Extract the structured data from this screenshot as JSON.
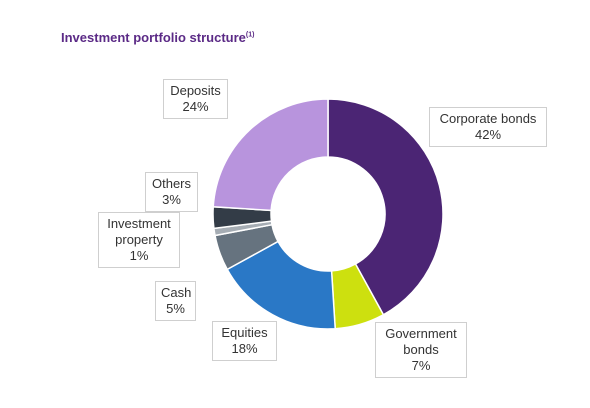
{
  "title": {
    "text": "Investment portfolio structure",
    "footnote": "(1)"
  },
  "chart_data": {
    "type": "pie",
    "donut": true,
    "unit": "%",
    "slices": [
      {
        "label": [
          "Corporate bonds"
        ],
        "display": "42%",
        "value": 42,
        "color": "#4b2574"
      },
      {
        "label": [
          "Government",
          "bonds"
        ],
        "display": "7%",
        "value": 7,
        "color": "#cde00f"
      },
      {
        "label": [
          "Equities"
        ],
        "display": "18%",
        "value": 18,
        "color": "#2a78c6"
      },
      {
        "label": [
          "Cash"
        ],
        "display": "5%",
        "value": 5,
        "color": "#66737f"
      },
      {
        "label": [
          "Investment",
          "property"
        ],
        "display": "1%",
        "value": 1,
        "color": "#a6adb4"
      },
      {
        "label": [
          "Others"
        ],
        "display": "3%",
        "value": 3,
        "color": "#333c47"
      },
      {
        "label": [
          "Deposits"
        ],
        "display": "24%",
        "value": 24,
        "color": "#b894dd"
      }
    ]
  }
}
